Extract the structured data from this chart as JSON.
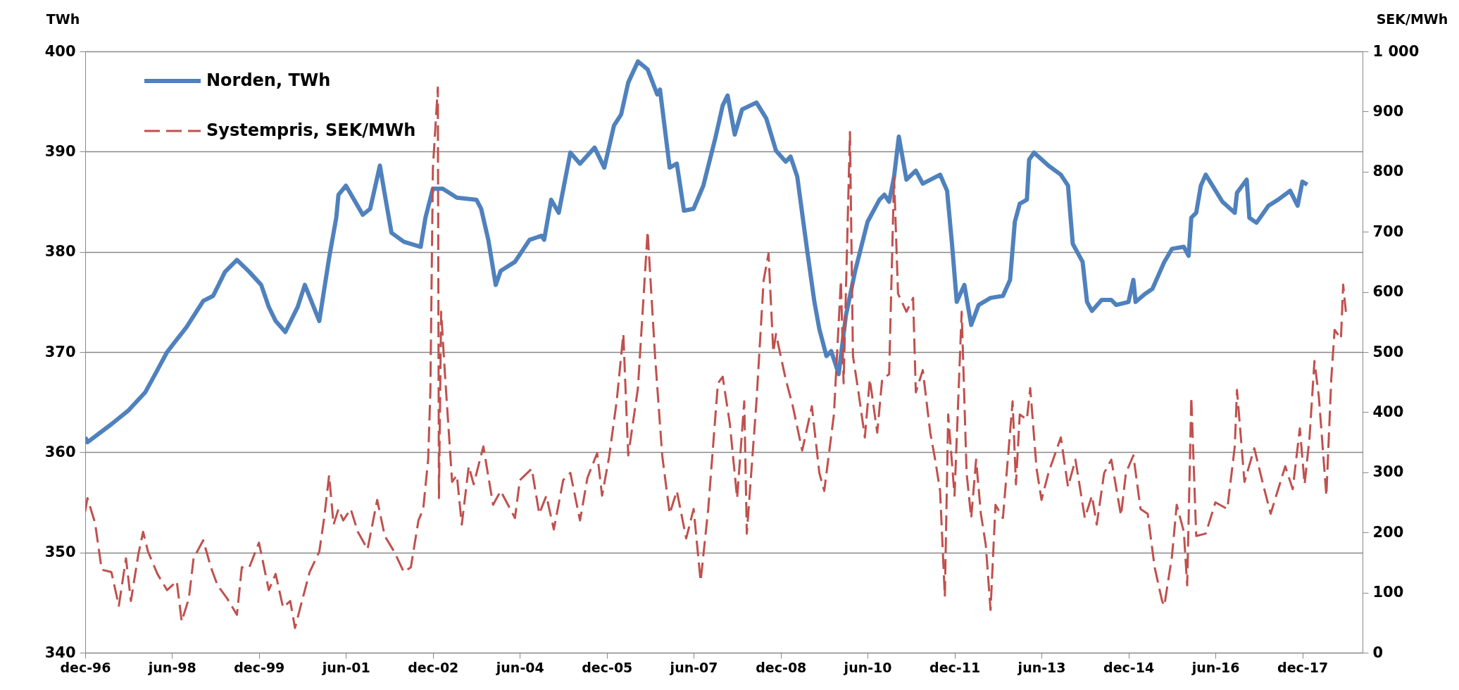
{
  "chart_data": {
    "type": "line",
    "ylabel": "TWh",
    "y2label": "SEK/MWh",
    "grid": "y",
    "legend": "top left",
    "xlim": [
      "1996-12-01",
      "2018-12-15"
    ],
    "xticks": [
      {
        "value": "1996-12-01",
        "label": "dec-96"
      },
      {
        "value": "1998-06-01",
        "label": "jun-98"
      },
      {
        "value": "1999-12-01",
        "label": "dec-99"
      },
      {
        "value": "2001-06-01",
        "label": "jun-01"
      },
      {
        "value": "2002-12-01",
        "label": "dec-02"
      },
      {
        "value": "2004-06-01",
        "label": "jun-04"
      },
      {
        "value": "2005-12-01",
        "label": "dec-05"
      },
      {
        "value": "2007-06-01",
        "label": "jun-07"
      },
      {
        "value": "2008-12-01",
        "label": "dec-08"
      },
      {
        "value": "2010-06-01",
        "label": "jun-10"
      },
      {
        "value": "2011-12-01",
        "label": "dec-11"
      },
      {
        "value": "2013-06-01",
        "label": "jun-13"
      },
      {
        "value": "2014-12-01",
        "label": "dec-14"
      },
      {
        "value": "2016-06-01",
        "label": "jun-16"
      },
      {
        "value": "2017-12-01",
        "label": "dec-17"
      }
    ],
    "ylim": [
      340,
      400
    ],
    "yticks": [
      340,
      350,
      360,
      370,
      380,
      390,
      400
    ],
    "y2lim": [
      0,
      1000
    ],
    "y2ticks": [
      0,
      100,
      200,
      300,
      400,
      500,
      600,
      700,
      800,
      900,
      {
        "value": 1000,
        "label": "1 000"
      }
    ],
    "series": [
      {
        "name": "Norden, TWh",
        "color": "#4f81bd",
        "line_style": "solid",
        "x": [
          "1996-12-01",
          "1996-12-15",
          "1997-05-15",
          "1997-09-01",
          "1997-12-15",
          "1998-02-15",
          "1998-05-01",
          "1998-09-01",
          "1998-12-15",
          "1999-02-15",
          "1999-05-01",
          "1999-07-15",
          "1999-10-01",
          "1999-12-15",
          "2000-02-01",
          "2000-03-15",
          "2000-05-15",
          "2000-08-01",
          "2000-09-15",
          "2000-12-15",
          "2001-02-15",
          "2001-04-01",
          "2001-04-15",
          "2001-06-01",
          "2001-09-15",
          "2001-11-01",
          "2002-01-01",
          "2002-02-01",
          "2002-03-15",
          "2002-06-01",
          "2002-09-15",
          "2002-10-15",
          "2002-12-01",
          "2003-02-01",
          "2003-05-01",
          "2003-09-01",
          "2003-10-01",
          "2003-11-15",
          "2004-01-01",
          "2004-02-01",
          "2004-05-01",
          "2004-08-01",
          "2004-10-15",
          "2004-11-01",
          "2004-12-15",
          "2005-02-01",
          "2005-04-15",
          "2005-06-15",
          "2005-09-15",
          "2005-11-15",
          "2006-01-15",
          "2006-03-01",
          "2006-04-15",
          "2006-06-15",
          "2006-08-15",
          "2006-10-15",
          "2006-11-01",
          "2007-01-01",
          "2007-02-15",
          "2007-04-01",
          "2007-06-01",
          "2007-08-01",
          "2007-10-15",
          "2007-12-01",
          "2008-01-01",
          "2008-02-15",
          "2008-04-01",
          "2008-07-01",
          "2008-09-01",
          "2008-11-01",
          "2009-01-01",
          "2009-02-01",
          "2009-03-15",
          "2009-05-15",
          "2009-07-01",
          "2009-08-01",
          "2009-09-15",
          "2009-10-15",
          "2009-12-01",
          "2010-01-15",
          "2010-03-15",
          "2010-06-01",
          "2010-08-15",
          "2010-09-15",
          "2010-10-15",
          "2010-11-15",
          "2010-12-15",
          "2011-02-01",
          "2011-04-01",
          "2011-05-15",
          "2011-09-01",
          "2011-10-15",
          "2011-11-15",
          "2011-12-15",
          "2012-02-01",
          "2012-03-15",
          "2012-05-01",
          "2012-07-15",
          "2012-10-01",
          "2012-11-15",
          "2012-12-15",
          "2013-01-15",
          "2013-03-01",
          "2013-03-15",
          "2013-04-15",
          "2013-07-15",
          "2013-10-01",
          "2013-11-15",
          "2013-12-15",
          "2014-02-15",
          "2014-03-15",
          "2014-04-15",
          "2014-06-15",
          "2014-08-15",
          "2014-09-15",
          "2014-12-01",
          "2015-01-01",
          "2015-01-15",
          "2015-03-15",
          "2015-05-01",
          "2015-07-15",
          "2015-09-01",
          "2015-11-15",
          "2015-12-15",
          "2016-01-01",
          "2016-02-01",
          "2016-03-01",
          "2016-04-01",
          "2016-07-15",
          "2016-10-01",
          "2016-10-15",
          "2016-12-15",
          "2017-01-01",
          "2017-02-15",
          "2017-05-01",
          "2017-07-01",
          "2017-09-15",
          "2017-11-01",
          "2017-12-01",
          "2018-01-01"
        ],
        "values": [
          361.5,
          361,
          362.8,
          364.2,
          366,
          367.8,
          370,
          372.5,
          375.1,
          375.6,
          378,
          379.2,
          378,
          376.7,
          374.5,
          373.1,
          372,
          374.5,
          376.7,
          373.1,
          379.4,
          383.4,
          385.7,
          386.6,
          383.7,
          384.3,
          388.6,
          385.7,
          381.9,
          381,
          380.5,
          383.4,
          386.3,
          386.3,
          385.4,
          385.2,
          384.3,
          381.2,
          376.7,
          378.1,
          379,
          381.2,
          381.6,
          381.2,
          385.2,
          383.9,
          389.9,
          388.8,
          390.4,
          388.4,
          392.6,
          393.7,
          396.9,
          399,
          398.2,
          395.7,
          396.2,
          388.4,
          388.8,
          384.1,
          384.3,
          386.6,
          391.3,
          394.6,
          395.6,
          391.7,
          394.2,
          394.9,
          393.3,
          390.1,
          389,
          389.5,
          387.5,
          380.3,
          375,
          372.3,
          369.6,
          370.1,
          367.8,
          373.6,
          378.1,
          383,
          385.2,
          385.7,
          385,
          387.5,
          391.5,
          387.2,
          388.1,
          386.8,
          387.7,
          386.1,
          380.8,
          375,
          376.7,
          372.7,
          374.7,
          375.4,
          375.6,
          377.2,
          383,
          384.8,
          385.2,
          389.2,
          389.9,
          388.6,
          387.7,
          386.6,
          380.8,
          379,
          375,
          374.1,
          375.2,
          375.2,
          374.7,
          375,
          377.2,
          375,
          375.8,
          376.3,
          379,
          380.3,
          380.5,
          379.6,
          383.4,
          383.9,
          386.6,
          387.7,
          385,
          383.9,
          385.9,
          387.2,
          383.4,
          382.9,
          384.6,
          385.2,
          386.1,
          384.6,
          387,
          386.7
        ]
      },
      {
        "name": "Systempris, SEK/MWh",
        "color": "#c0504d",
        "line_style": "dashed",
        "axis": "y2",
        "x": [
          "1996-12-01",
          "1996-12-15",
          "1997-02-01",
          "1997-03-15",
          "1997-05-15",
          "1997-07-01",
          "1997-08-15",
          "1997-09-15",
          "1997-11-01",
          "1997-12-01",
          "1998-01-01",
          "1998-03-01",
          "1998-05-01",
          "1998-07-01",
          "1998-08-01",
          "1998-09-15",
          "1998-10-15",
          "1998-12-15",
          "1999-02-01",
          "1999-03-15",
          "1999-05-15",
          "1999-07-15",
          "1999-08-15",
          "1999-10-01",
          "1999-12-01",
          "2000-02-01",
          "2000-03-15",
          "2000-05-01",
          "2000-06-15",
          "2000-07-15",
          "2000-09-01",
          "2000-10-15",
          "2000-12-15",
          "2001-01-15",
          "2001-02-15",
          "2001-03-15",
          "2001-04-15",
          "2001-05-15",
          "2001-07-01",
          "2001-08-15",
          "2001-10-15",
          "2001-12-15",
          "2002-02-01",
          "2002-04-01",
          "2002-06-01",
          "2002-07-15",
          "2002-09-01",
          "2002-10-01",
          "2002-11-01",
          "2002-11-15",
          "2002-12-01",
          "2003-01-01",
          "2003-01-08",
          "2003-01-22",
          "2003-02-15",
          "2003-04-01",
          "2003-05-01",
          "2003-06-01",
          "2003-07-15",
          "2003-08-15",
          "2003-10-15",
          "2003-12-15",
          "2004-02-01",
          "2004-05-01",
          "2004-06-01",
          "2004-08-15",
          "2004-10-01",
          "2004-11-15",
          "2005-01-01",
          "2005-03-01",
          "2005-04-15",
          "2005-06-15",
          "2005-08-01",
          "2005-10-01",
          "2005-11-01",
          "2005-12-15",
          "2006-02-01",
          "2006-03-15",
          "2006-04-15",
          "2006-06-15",
          "2006-08-15",
          "2006-10-01",
          "2006-11-15",
          "2007-01-01",
          "2007-02-15",
          "2007-04-15",
          "2007-06-01",
          "2007-07-15",
          "2007-09-01",
          "2007-11-01",
          "2007-12-01",
          "2008-01-15",
          "2008-03-01",
          "2008-04-15",
          "2008-05-01",
          "2008-07-01",
          "2008-08-15",
          "2008-09-15",
          "2008-10-15",
          "2008-11-01",
          "2009-01-01",
          "2009-02-15",
          "2009-04-15",
          "2009-06-15",
          "2009-08-01",
          "2009-09-01",
          "2009-11-01",
          "2009-12-15",
          "2010-01-01",
          "2010-02-10",
          "2010-03-01",
          "2010-04-01",
          "2010-05-15",
          "2010-06-15",
          "2010-08-01",
          "2010-09-01",
          "2010-10-15",
          "2010-11-15",
          "2010-12-10",
          "2011-02-01",
          "2011-03-15",
          "2011-04-01",
          "2011-05-15",
          "2011-07-01",
          "2011-08-01",
          "2011-09-01",
          "2011-10-01",
          "2011-10-22",
          "2011-12-01",
          "2012-01-15",
          "2012-02-15",
          "2012-03-15",
          "2012-04-15",
          "2012-05-15",
          "2012-06-15",
          "2012-07-15",
          "2012-08-15",
          "2012-10-01",
          "2012-12-01",
          "2012-12-22",
          "2013-01-15",
          "2013-03-01",
          "2013-03-22",
          "2013-05-01",
          "2013-06-01",
          "2013-07-15",
          "2013-10-01",
          "2013-11-15",
          "2014-01-01",
          "2014-03-01",
          "2014-04-15",
          "2014-05-15",
          "2014-07-01",
          "2014-08-15",
          "2014-10-15",
          "2014-11-15",
          "2015-01-01",
          "2015-02-15",
          "2015-04-01",
          "2015-05-15",
          "2015-07-01",
          "2015-07-15",
          "2015-09-01",
          "2015-10-01",
          "2015-11-15",
          "2015-12-06",
          "2016-01-01",
          "2016-02-01",
          "2016-04-01",
          "2016-06-01",
          "2016-08-15",
          "2016-10-01",
          "2016-10-15",
          "2016-12-01",
          "2017-02-01",
          "2017-04-01",
          "2017-05-15",
          "2017-08-15",
          "2017-10-01",
          "2017-11-15",
          "2017-12-15",
          "2018-01-15",
          "2018-02-15",
          "2018-03-15",
          "2018-05-01",
          "2018-06-01",
          "2018-06-22",
          "2018-08-01",
          "2018-08-15",
          "2018-09-01"
        ],
        "values": [
          235,
          257,
          216,
          138,
          134,
          78,
          157,
          86,
          164,
          201,
          168,
          131,
          104,
          119,
          52,
          90,
          157,
          187,
          142,
          112,
          90,
          63,
          142,
          142,
          183,
          104,
          131,
          75,
          86,
          41,
          90,
          134,
          168,
          224,
          295,
          213,
          239,
          220,
          239,
          201,
          172,
          254,
          194,
          168,
          134,
          142,
          220,
          239,
          321,
          433,
          806,
          940,
          257,
          567,
          463,
          284,
          295,
          213,
          310,
          280,
          343,
          246,
          269,
          224,
          287,
          306,
          231,
          261,
          205,
          287,
          299,
          220,
          291,
          332,
          261,
          325,
          418,
          530,
          328,
          440,
          701,
          493,
          328,
          231,
          269,
          190,
          239,
          119,
          239,
          448,
          459,
          381,
          257,
          418,
          198,
          418,
          619,
          664,
          500,
          530,
          455,
          410,
          336,
          410,
          299,
          269,
          396,
          619,
          448,
          866,
          493,
          440,
          358,
          455,
          366,
          455,
          463,
          791,
          597,
          567,
          590,
          433,
          470,
          366,
          321,
          269,
          93,
          396,
          261,
          567,
          299,
          224,
          321,
          231,
          179,
          71,
          246,
          224,
          418,
          280,
          396,
          388,
          440,
          306,
          254,
          299,
          358,
          276,
          321,
          224,
          261,
          213,
          299,
          321,
          228,
          299,
          328,
          239,
          231,
          142,
          86,
          78,
          160,
          246,
          201,
          112,
          425,
          194,
          198,
          250,
          239,
          343,
          437,
          284,
          340,
          276,
          231,
          310,
          272,
          373,
          280,
          358,
          485,
          425,
          261,
          455,
          537,
          522,
          612,
          567
        ]
      }
    ]
  }
}
